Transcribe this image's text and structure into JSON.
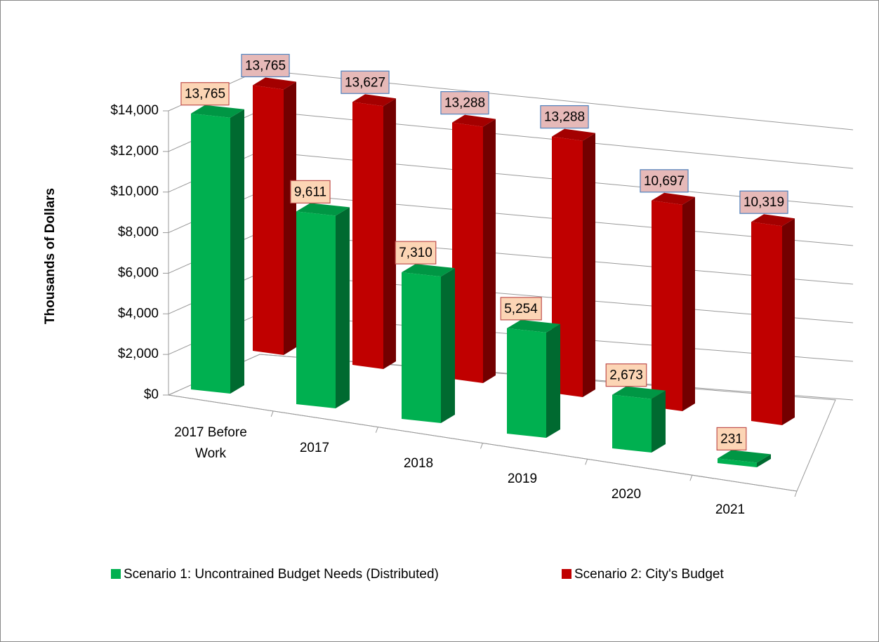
{
  "chart_data": {
    "type": "bar3d",
    "y_axis_label": "Thousands of Dollars",
    "categories": [
      "2017 Before Work",
      "2017",
      "2018",
      "2019",
      "2020",
      "2021"
    ],
    "series": [
      {
        "name": "Scenario 1: Uncontrained Budget Needs (Distributed)",
        "color": "#00b050",
        "values": [
          13765,
          9611,
          7310,
          5254,
          2673,
          231
        ],
        "value_labels": [
          "13,765",
          "9,611",
          "7,310",
          "5,254",
          "2,673",
          "231"
        ]
      },
      {
        "name": "Scenario 2: City's Budget",
        "color": "#c00000",
        "values": [
          13765,
          13627,
          13288,
          13288,
          10697,
          10319
        ],
        "value_labels": [
          "13,765",
          "13,627",
          "13,288",
          "13,288",
          "10,697",
          "10,319"
        ]
      }
    ],
    "ylim": [
      0,
      14000
    ],
    "yticks": [
      {
        "value": 0,
        "label": "$0"
      },
      {
        "value": 2000,
        "label": "$2,000"
      },
      {
        "value": 4000,
        "label": "$4,000"
      },
      {
        "value": 6000,
        "label": "$6,000"
      },
      {
        "value": 8000,
        "label": "$8,000"
      },
      {
        "value": 10000,
        "label": "$10,000"
      },
      {
        "value": 12000,
        "label": "$12,000"
      },
      {
        "value": 14000,
        "label": "$14,000"
      }
    ],
    "grid": true,
    "legend": "bottom"
  }
}
